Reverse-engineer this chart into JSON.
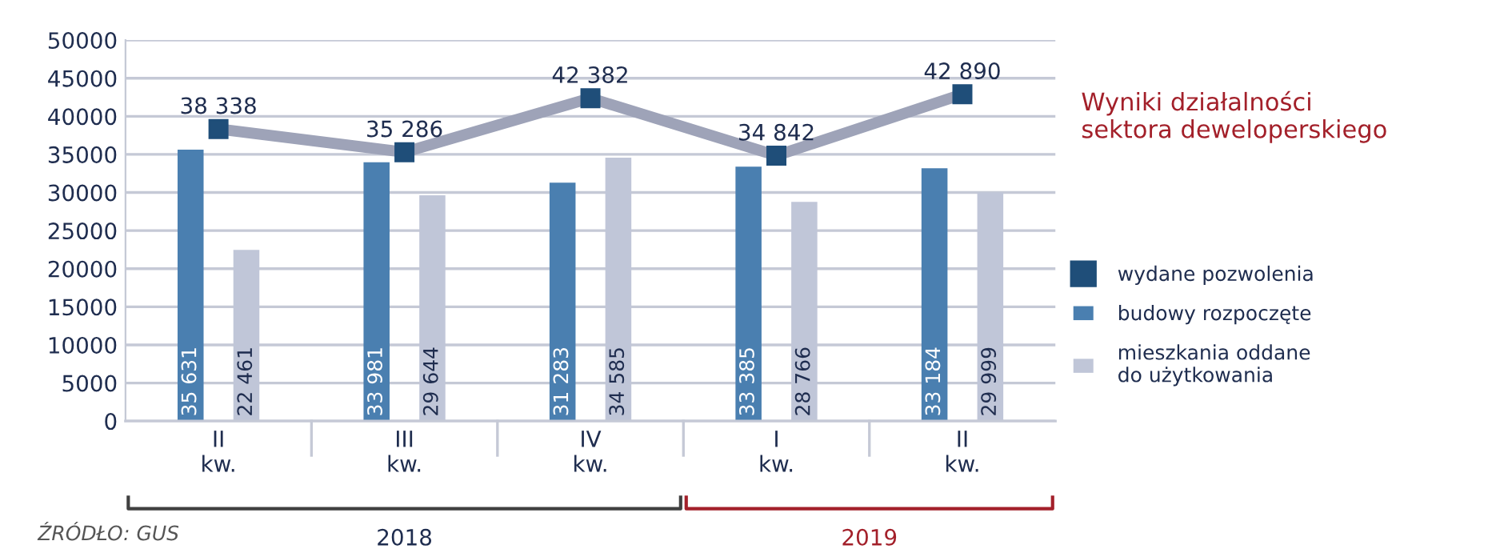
{
  "chart_data": {
    "type": "bar",
    "title": "Wyniki działalności\nsektora deweloperskiego",
    "categories": [
      "II\nkw.",
      "III\nkw.",
      "IV\nkw.",
      "I\nkw.",
      "II\nkw."
    ],
    "series": [
      {
        "name": "wydane pozwolenia",
        "type": "line",
        "color": "#1f4e79",
        "values": [
          38338,
          35286,
          42382,
          34842,
          42890
        ],
        "marker": "square"
      },
      {
        "name": "budowy rozpoczęte",
        "color": "#4a7fb0",
        "values": [
          35631,
          33981,
          31283,
          33385,
          33184
        ]
      },
      {
        "name": "mieszkania oddane\ndo użytkowania",
        "color": "#c0c6d8",
        "values": [
          22461,
          29644,
          34585,
          28766,
          29999
        ]
      }
    ],
    "value_labels": [
      [
        "38 338",
        "35 286",
        "42 382",
        "34 842",
        "42 890"
      ],
      [
        "35 631",
        "33 981",
        "31 283",
        "33 385",
        "33 184"
      ],
      [
        "22 461",
        "29 644",
        "34 585",
        "28 766",
        "29 999"
      ]
    ],
    "ylim": [
      0,
      50000
    ],
    "yticks": [
      0,
      5000,
      10000,
      15000,
      20000,
      25000,
      30000,
      35000,
      40000,
      45000,
      50000
    ],
    "grid": "y",
    "legend": "right",
    "annotations": [
      "2018",
      "2019",
      "ŹRÓDŁO: GUS"
    ]
  }
}
